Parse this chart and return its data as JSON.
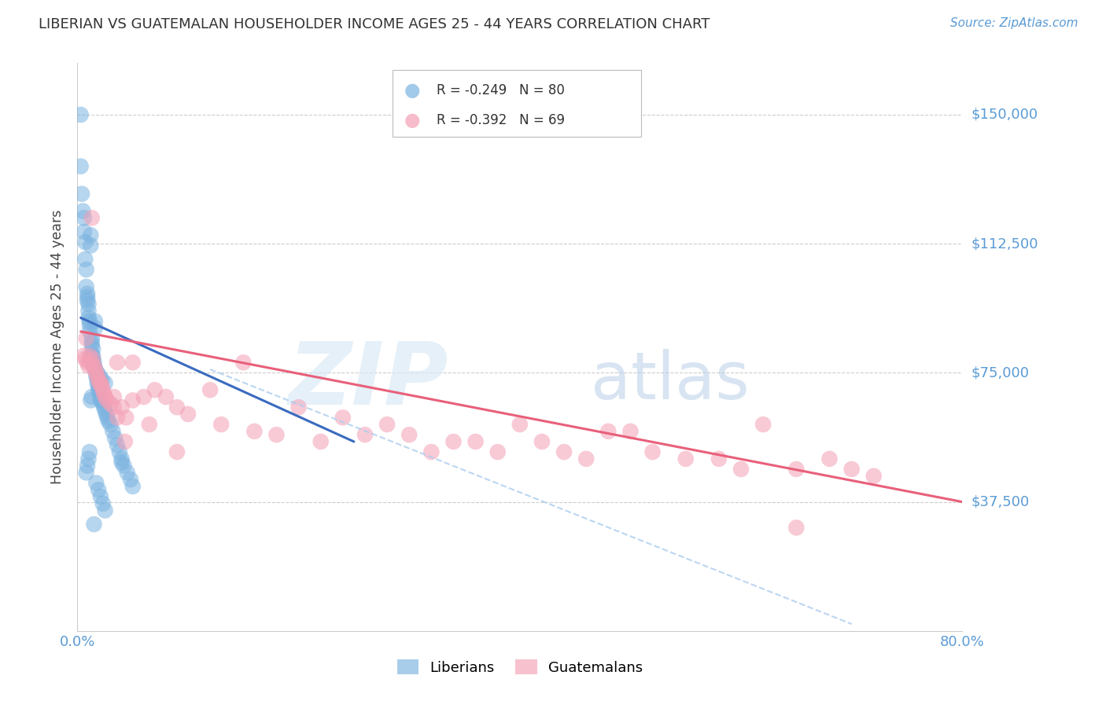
{
  "title": "LIBERIAN VS GUATEMALAN HOUSEHOLDER INCOME AGES 25 - 44 YEARS CORRELATION CHART",
  "source": "Source: ZipAtlas.com",
  "ylabel": "Householder Income Ages 25 - 44 years",
  "xlim": [
    0.0,
    0.8
  ],
  "ylim": [
    0,
    165000
  ],
  "yticks": [
    37500,
    75000,
    112500,
    150000
  ],
  "ytick_labels": [
    "$37,500",
    "$75,000",
    "$112,500",
    "$150,000"
  ],
  "xtick_labels": [
    "0.0%",
    "",
    "",
    "",
    "",
    "",
    "",
    "",
    "80.0%"
  ],
  "liberian_color": "#7ab3e0",
  "guatemalan_color": "#f4a0b5",
  "liberian_R": -0.249,
  "liberian_N": 80,
  "guatemalan_R": -0.392,
  "guatemalan_N": 69,
  "watermark_zip": "ZIP",
  "watermark_atlas": "atlas",
  "background_color": "#ffffff",
  "grid_color": "#cccccc",
  "tick_color": "#5b9bd5",
  "blue_line_x": [
    0.003,
    0.25
  ],
  "blue_line_y": [
    91000,
    55000
  ],
  "pink_line_x": [
    0.003,
    0.8
  ],
  "pink_line_y": [
    87000,
    37500
  ],
  "dash_line_x": [
    0.12,
    0.7
  ],
  "dash_line_y": [
    76000,
    2000
  ],
  "liberian_points_x": [
    0.003,
    0.003,
    0.004,
    0.005,
    0.006,
    0.006,
    0.007,
    0.007,
    0.008,
    0.008,
    0.009,
    0.009,
    0.009,
    0.01,
    0.01,
    0.01,
    0.011,
    0.011,
    0.011,
    0.012,
    0.012,
    0.013,
    0.013,
    0.013,
    0.014,
    0.014,
    0.014,
    0.015,
    0.015,
    0.016,
    0.016,
    0.016,
    0.017,
    0.017,
    0.018,
    0.018,
    0.019,
    0.019,
    0.02,
    0.02,
    0.021,
    0.021,
    0.022,
    0.023,
    0.024,
    0.025,
    0.026,
    0.027,
    0.028,
    0.03,
    0.032,
    0.034,
    0.036,
    0.038,
    0.04,
    0.04,
    0.042,
    0.045,
    0.048,
    0.05,
    0.013,
    0.014,
    0.015,
    0.016,
    0.018,
    0.02,
    0.022,
    0.025,
    0.013,
    0.012,
    0.011,
    0.01,
    0.009,
    0.008,
    0.015,
    0.017,
    0.019,
    0.021,
    0.023,
    0.025
  ],
  "liberian_points_y": [
    150000,
    135000,
    127000,
    122000,
    120000,
    116000,
    113000,
    108000,
    105000,
    100000,
    98000,
    97000,
    96000,
    95000,
    93000,
    91000,
    90000,
    89000,
    87000,
    115000,
    112000,
    85000,
    84000,
    83000,
    82000,
    80000,
    79000,
    78000,
    77000,
    90000,
    88000,
    76000,
    75000,
    74000,
    73000,
    72000,
    71000,
    70000,
    70000,
    69000,
    68000,
    67000,
    67000,
    66000,
    65000,
    64000,
    63000,
    62000,
    61000,
    60000,
    58000,
    56000,
    54000,
    52000,
    50000,
    49000,
    48000,
    46000,
    44000,
    42000,
    80000,
    79000,
    77000,
    76000,
    75000,
    74000,
    73000,
    72000,
    68000,
    67000,
    52000,
    50000,
    48000,
    46000,
    31000,
    43000,
    41000,
    39000,
    37000,
    35000
  ],
  "guatemalan_points_x": [
    0.006,
    0.007,
    0.008,
    0.009,
    0.01,
    0.011,
    0.012,
    0.013,
    0.014,
    0.015,
    0.016,
    0.017,
    0.018,
    0.019,
    0.02,
    0.021,
    0.022,
    0.023,
    0.024,
    0.025,
    0.027,
    0.03,
    0.033,
    0.036,
    0.04,
    0.044,
    0.05,
    0.06,
    0.07,
    0.08,
    0.09,
    0.1,
    0.12,
    0.13,
    0.15,
    0.16,
    0.18,
    0.2,
    0.22,
    0.24,
    0.26,
    0.28,
    0.3,
    0.32,
    0.34,
    0.36,
    0.38,
    0.4,
    0.42,
    0.44,
    0.46,
    0.48,
    0.5,
    0.52,
    0.55,
    0.58,
    0.6,
    0.62,
    0.65,
    0.68,
    0.7,
    0.72,
    0.033,
    0.036,
    0.043,
    0.05,
    0.065,
    0.09,
    0.65
  ],
  "guatemalan_points_y": [
    80000,
    79000,
    85000,
    78000,
    77000,
    80000,
    78000,
    120000,
    79000,
    77000,
    76000,
    75000,
    74000,
    73000,
    72000,
    72000,
    71000,
    70000,
    69000,
    68000,
    67000,
    66000,
    65000,
    78000,
    65000,
    62000,
    78000,
    68000,
    70000,
    68000,
    65000,
    63000,
    70000,
    60000,
    78000,
    58000,
    57000,
    65000,
    55000,
    62000,
    57000,
    60000,
    57000,
    52000,
    55000,
    55000,
    52000,
    60000,
    55000,
    52000,
    50000,
    58000,
    58000,
    52000,
    50000,
    50000,
    47000,
    60000,
    47000,
    50000,
    47000,
    45000,
    68000,
    62000,
    55000,
    67000,
    60000,
    52000,
    30000
  ]
}
